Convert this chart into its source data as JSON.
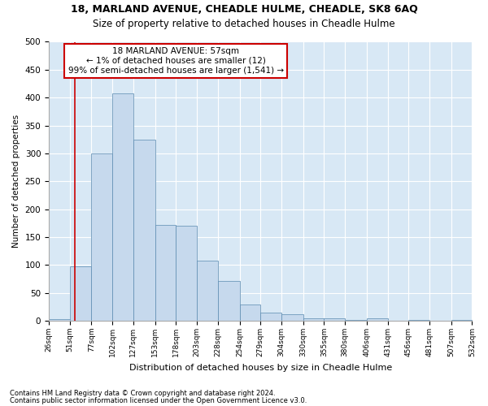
{
  "title": "18, MARLAND AVENUE, CHEADLE HULME, CHEADLE, SK8 6AQ",
  "subtitle": "Size of property relative to detached houses in Cheadle Hulme",
  "xlabel": "Distribution of detached houses by size in Cheadle Hulme",
  "ylabel": "Number of detached properties",
  "bar_edges": [
    26,
    51,
    77,
    102,
    127,
    153,
    178,
    203,
    228,
    254,
    279,
    304,
    330,
    355,
    380,
    406,
    431,
    456,
    481,
    507,
    532
  ],
  "bar_values": [
    3,
    98,
    300,
    407,
    325,
    172,
    170,
    108,
    72,
    30,
    15,
    12,
    4,
    4,
    2,
    5,
    0,
    2,
    0,
    2
  ],
  "bar_fill": "#c6d9ed",
  "bar_edge": "#5a8ab0",
  "vline_x": 57,
  "vline_color": "#cc0000",
  "annotation_text": "18 MARLAND AVENUE: 57sqm\n← 1% of detached houses are smaller (12)\n99% of semi-detached houses are larger (1,541) →",
  "annotation_box_color": "#ffffff",
  "annotation_box_edge": "#cc0000",
  "ylim": [
    0,
    500
  ],
  "yticks": [
    0,
    50,
    100,
    150,
    200,
    250,
    300,
    350,
    400,
    450,
    500
  ],
  "plot_bg": "#d8e8f5",
  "footer1": "Contains HM Land Registry data © Crown copyright and database right 2024.",
  "footer2": "Contains public sector information licensed under the Open Government Licence v3.0.",
  "title_fontsize": 9,
  "subtitle_fontsize": 8.5
}
